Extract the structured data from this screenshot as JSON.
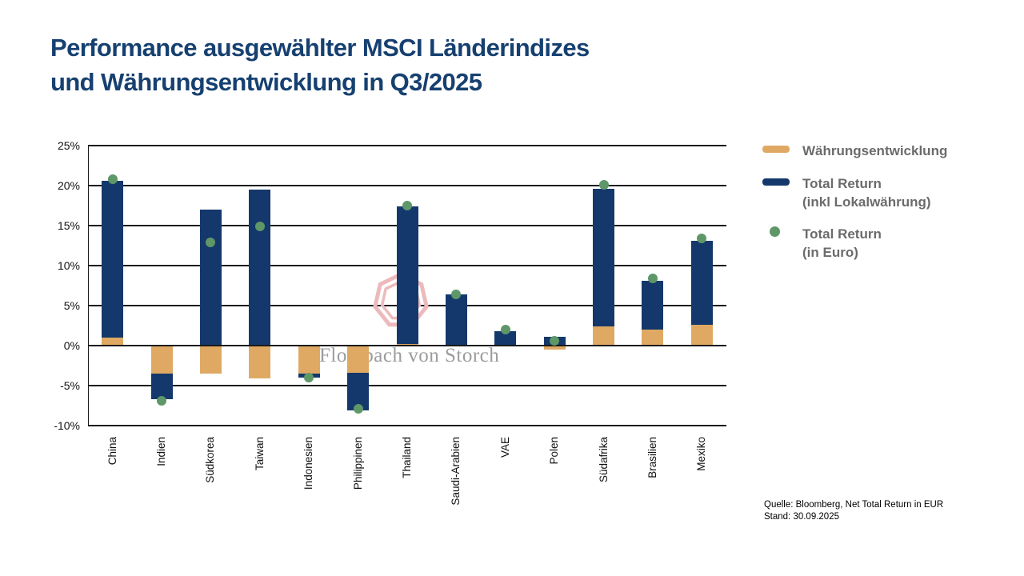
{
  "title": {
    "line1": "Performance ausgewählter MSCI Länderindizes",
    "line2": "und Währungsentwicklung in Q3/2025"
  },
  "legend": [
    {
      "swatch": "bar",
      "color": "#dfa964",
      "label": "Währungsentwicklung",
      "label2": ""
    },
    {
      "swatch": "bar",
      "color": "#14386b",
      "label": "Total Return",
      "label2": "(inkl Lokalwährung)"
    },
    {
      "swatch": "dot",
      "color": "#5e9768",
      "label": "Total Return",
      "label2": "(in Euro)"
    }
  ],
  "watermark": {
    "text": "Flossbach von Storch"
  },
  "source": {
    "line1": "Quelle: Bloomberg, Net Total Return in EUR",
    "line2": "Stand: 30.09.2025"
  },
  "colors": {
    "navy": "#14386b",
    "tan": "#dfa964",
    "green": "#5e9768",
    "title_blue": "#164070",
    "legend_text": "#6b6b6b",
    "axis": "#1a1a1a",
    "tick_text": "#111111",
    "watermark_pink": "#ecbabd",
    "watermark_text": "#9b9c9e"
  },
  "chart_data": {
    "type": "bar",
    "stacked": true,
    "title": "Performance ausgewählter MSCI Länderindizes und Währungsentwicklung in Q3/2025",
    "xlabel": "",
    "ylabel": "",
    "ylim": [
      -10,
      25
    ],
    "grid": true,
    "legend_position": "right",
    "yticks": [
      25,
      20,
      15,
      10,
      5,
      0,
      -5,
      -10
    ],
    "ytick_labels": [
      "25%",
      "20%",
      "15%",
      "10%",
      "5%",
      "0%",
      "-5%",
      "-10%"
    ],
    "categories": [
      "China",
      "Indien",
      "Südkorea",
      "Taiwan",
      "Indonesien",
      "Philippinen",
      "Thailand",
      "Saudi-Arabien",
      "VAE",
      "Polen",
      "Südafrika",
      "Brasilien",
      "Mexiko"
    ],
    "series": [
      {
        "name": "Währungsentwicklung",
        "type": "bar",
        "color": "#dfa964",
        "values": [
          1.0,
          -3.5,
          -3.5,
          -4.1,
          -3.5,
          -3.4,
          0.2,
          0.0,
          0.0,
          -0.5,
          2.4,
          2.0,
          2.6
        ]
      },
      {
        "name": "Total Return (inkl Lokalwährung)",
        "type": "bar",
        "color": "#14386b",
        "values": [
          19.6,
          -3.2,
          17.0,
          19.5,
          -0.5,
          -4.7,
          17.2,
          6.4,
          1.8,
          1.1,
          17.2,
          6.1,
          10.5
        ]
      },
      {
        "name": "Total Return (in Euro)",
        "type": "scatter",
        "color": "#5e9768",
        "values": [
          20.8,
          -6.9,
          12.9,
          14.9,
          -4.0,
          -7.9,
          17.5,
          6.4,
          2.0,
          0.6,
          20.1,
          8.4,
          13.4
        ]
      }
    ]
  }
}
